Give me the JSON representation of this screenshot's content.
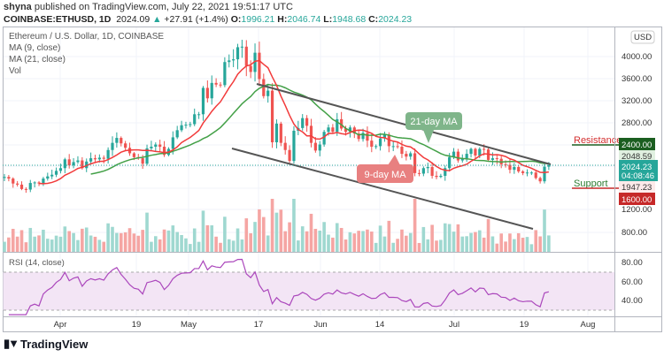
{
  "header": {
    "publisher": "shyna",
    "published_text": "published on TradingView.com, July 22, 2021 19:51:17 UTC",
    "symbol": "COINBASE:ETHUSD, 1D",
    "last": "2024.09",
    "change": "+27.91 (+1.4%)",
    "o_label": "O:",
    "o": "1996.21",
    "h_label": "H:",
    "h": "2046.74",
    "l_label": "L:",
    "l": "1948.68",
    "c_label": "C:",
    "c": "2024.23"
  },
  "legend": {
    "title": "Ethereum / U.S. Dollar, 1D, COINBASE",
    "ma9": "MA (9, close)",
    "ma21": "MA (21, close)",
    "vol": "Vol",
    "rsi": "RSI (14, close)"
  },
  "annotations": {
    "ma21_callout": "21-day MA",
    "ma9_callout": "9-day MA",
    "resistance": "Resistance",
    "support": "Support"
  },
  "price_axis": {
    "currency": "USD",
    "ticks": [
      "4000.00",
      "3600.00",
      "3200.00",
      "2800.00",
      "1200.00",
      "800.00"
    ],
    "resistance_price": "2400.00",
    "ma21_value": "2048.59",
    "last_price": "2024.23",
    "countdown": "04:08:46",
    "ma9_value": "1947.23",
    "support_price": "1600.00"
  },
  "rsi_axis": {
    "ticks": [
      "80.00",
      "60.00",
      "40.00"
    ]
  },
  "time_axis": {
    "ticks": [
      "Apr",
      "19",
      "May",
      "17",
      "Jun",
      "14",
      "Jul",
      "19",
      "Aug"
    ]
  },
  "brand": "TradingView",
  "colors": {
    "up": "#26a69a",
    "down": "#ef5350",
    "ma9": "#f23b3b",
    "ma21": "#43a047",
    "rsi": "#ab47bc",
    "resistance": "#1b5e20",
    "support": "#c62828",
    "last": "#26a69a"
  },
  "chart_data": {
    "type": "candlestick",
    "symbol": "ETHUSD",
    "interval": "1D",
    "date_range": [
      "2021-03-19",
      "2021-07-22"
    ],
    "ylim": [
      600,
      4400
    ],
    "closes": [
      1810,
      1780,
      1690,
      1670,
      1590,
      1580,
      1700,
      1710,
      1690,
      1780,
      1820,
      1850,
      1920,
      1970,
      2130,
      2020,
      2080,
      2110,
      1970,
      2090,
      2150,
      2130,
      2160,
      2140,
      2300,
      2430,
      2520,
      2420,
      2340,
      2240,
      2170,
      2150,
      2050,
      2330,
      2360,
      2400,
      2360,
      2210,
      2320,
      2530,
      2660,
      2750,
      2760,
      2770,
      2950,
      2950,
      3430,
      3240,
      3520,
      3490,
      3480,
      3900,
      3930,
      3950,
      4170,
      4180,
      3830,
      3720,
      4070,
      3590,
      3280,
      3380,
      2440,
      2780,
      2430,
      2300,
      2100,
      2650,
      2700,
      2880,
      2740,
      2430,
      2290,
      2400,
      2630,
      2710,
      2630,
      2860,
      2690,
      2630,
      2710,
      2600,
      2500,
      2610,
      2470,
      2360,
      2370,
      2510,
      2580,
      2370,
      2370,
      2360,
      2230,
      2180,
      2240,
      1880,
      1870,
      1970,
      1990,
      1830,
      1810,
      1830,
      1970,
      2170,
      2270,
      2110,
      2150,
      2230,
      2320,
      2200,
      2320,
      2310,
      2120,
      2150,
      2140,
      2040,
      2030,
      1940,
      1990,
      1910,
      1880,
      1890,
      1890,
      1790,
      1730,
      1996,
      2024
    ],
    "last_ohlc": {
      "open": 1996.21,
      "high": 2046.74,
      "low": 1948.68,
      "close": 2024.23
    },
    "indicators": [
      "MA 9",
      "MA 21",
      "Volume",
      "RSI 14"
    ],
    "rsi_band": [
      30,
      70
    ],
    "grid": true
  }
}
